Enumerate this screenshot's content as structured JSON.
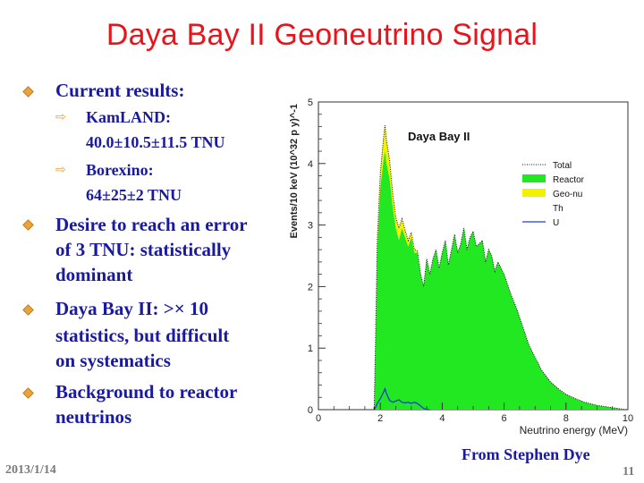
{
  "slide": {
    "title": "Daya Bay II Geoneutrino Signal",
    "bullets": [
      {
        "text": "Current results:"
      },
      {
        "text": "Desire to reach an error"
      },
      {
        "text": "of 3 TNU: statistically"
      },
      {
        "text": "dominant"
      },
      {
        "text": "Daya Bay II: >× 10"
      },
      {
        "text": "statistics, but difficult"
      },
      {
        "text": "on systematics"
      },
      {
        "text": "Background to reactor"
      },
      {
        "text": "neutrinos"
      }
    ],
    "sub_items": [
      {
        "label": "KamLAND:",
        "value": "40.0±10.5±11.5 TNU"
      },
      {
        "label": "Borexino:",
        "value": "64±25±2 TNU"
      }
    ],
    "credit": "From Stephen Dye",
    "date": "2013/1/14",
    "page": "11",
    "colors": {
      "title": "#e8141c",
      "text": "#1a1aa0",
      "bullet": "#e8a33a",
      "reactor": "#22e822",
      "geonu": "#f2f200",
      "u_line": "#1c3cd8"
    }
  },
  "chart_data": {
    "type": "area",
    "title": "Daya Bay II",
    "xlabel": "Neutrino energy (MeV)",
    "ylabel": "Events/10 keV (10^32 p y)^-1",
    "xlim": [
      0,
      10
    ],
    "ylim": [
      0,
      5
    ],
    "xticks": [
      "0",
      "2",
      "4",
      "6",
      "8",
      "10"
    ],
    "yticks": [
      "0",
      "1",
      "2",
      "3",
      "4",
      "5"
    ],
    "legend_position": "top-right",
    "legend": [
      "Total",
      "Reactor",
      "Geo-nu",
      "Th",
      "U"
    ],
    "x": [
      1.8,
      1.85,
      1.9,
      2.0,
      2.1,
      2.15,
      2.2,
      2.3,
      2.4,
      2.5,
      2.6,
      2.7,
      2.8,
      2.9,
      3.0,
      3.1,
      3.2,
      3.3,
      3.4,
      3.5,
      3.6,
      3.7,
      3.8,
      3.9,
      4.0,
      4.1,
      4.2,
      4.3,
      4.4,
      4.5,
      4.6,
      4.7,
      4.8,
      4.9,
      5.0,
      5.1,
      5.2,
      5.3,
      5.4,
      5.5,
      5.6,
      5.7,
      5.8,
      5.9,
      6.0,
      6.2,
      6.4,
      6.6,
      6.8,
      7.0,
      7.2,
      7.5,
      7.8,
      8.0,
      8.3,
      8.6,
      9.0,
      9.4,
      9.8,
      10.0
    ],
    "series": [
      {
        "name": "Reactor",
        "values": [
          0.0,
          1.2,
          2.6,
          3.6,
          4.05,
          4.2,
          4.0,
          3.75,
          3.3,
          2.95,
          2.75,
          2.95,
          2.8,
          2.65,
          2.8,
          2.55,
          2.55,
          2.2,
          2.0,
          2.45,
          2.2,
          2.45,
          2.6,
          2.3,
          2.55,
          2.75,
          2.35,
          2.6,
          2.85,
          2.55,
          2.7,
          2.95,
          2.6,
          2.8,
          2.9,
          2.65,
          2.7,
          2.75,
          2.4,
          2.6,
          2.5,
          2.25,
          2.4,
          2.3,
          2.2,
          1.9,
          1.65,
          1.35,
          1.05,
          0.85,
          0.65,
          0.45,
          0.32,
          0.25,
          0.18,
          0.12,
          0.07,
          0.04,
          0.01,
          0.0
        ]
      },
      {
        "name": "Geo-nu",
        "values": [
          0.0,
          0.05,
          0.12,
          0.25,
          0.35,
          0.42,
          0.38,
          0.3,
          0.22,
          0.18,
          0.2,
          0.15,
          0.12,
          0.1,
          0.08,
          0.05,
          0.03,
          0.01,
          0.0,
          0.0,
          0.0,
          0.0,
          0.0,
          0.0,
          0.0,
          0.0,
          0.0,
          0.0,
          0.0,
          0.0,
          0.0,
          0.0,
          0.0,
          0.0,
          0.0,
          0.0,
          0.0,
          0.0,
          0.0,
          0.0,
          0.0,
          0.0,
          0.0,
          0.0,
          0.0,
          0.0,
          0.0,
          0.0,
          0.0,
          0.0,
          0.0,
          0.0,
          0.0,
          0.0,
          0.0,
          0.0,
          0.0,
          0.0,
          0.0,
          0.0
        ]
      },
      {
        "name": "U",
        "values": [
          0.0,
          0.04,
          0.1,
          0.18,
          0.28,
          0.34,
          0.26,
          0.15,
          0.12,
          0.14,
          0.16,
          0.12,
          0.11,
          0.12,
          0.1,
          0.12,
          0.1,
          0.06,
          0.02,
          0.0,
          0.0,
          0.0,
          0.0,
          0.0,
          0.0,
          0.0,
          0.0,
          0.0,
          0.0,
          0.0,
          0.0,
          0.0,
          0.0,
          0.0,
          0.0,
          0.0,
          0.0,
          0.0,
          0.0,
          0.0,
          0.0,
          0.0,
          0.0,
          0.0,
          0.0,
          0.0,
          0.0,
          0.0,
          0.0,
          0.0,
          0.0,
          0.0,
          0.0,
          0.0,
          0.0,
          0.0,
          0.0,
          0.0,
          0.0,
          0.0
        ]
      }
    ]
  }
}
